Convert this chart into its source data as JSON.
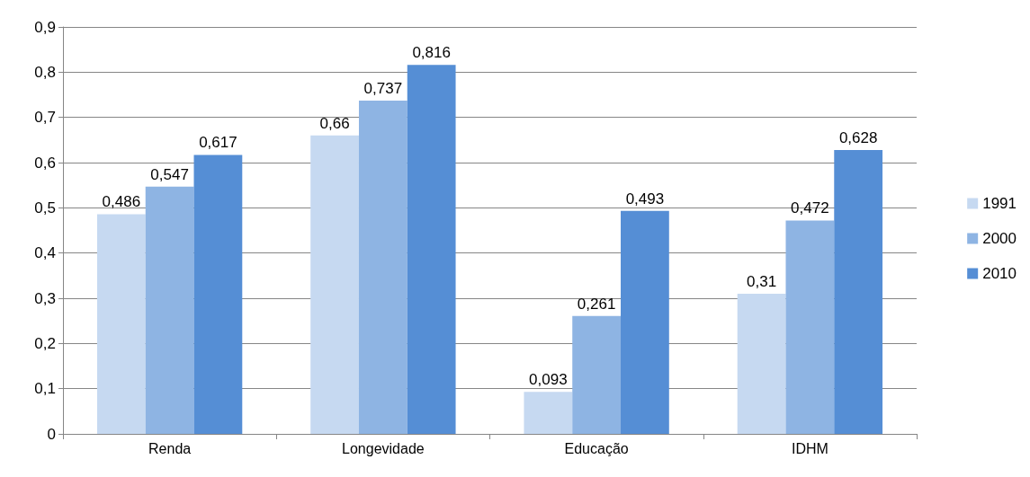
{
  "chart_data": {
    "type": "bar",
    "categories": [
      "Renda",
      "Longevidade",
      "Educação",
      "IDHM"
    ],
    "series": [
      {
        "name": "1991",
        "color": "#c6d9f1",
        "values": [
          0.486,
          0.66,
          0.093,
          0.31
        ],
        "value_labels": [
          "0,486",
          "0,66",
          "0,093",
          "0,31"
        ]
      },
      {
        "name": "2000",
        "color": "#8eb4e3",
        "values": [
          0.547,
          0.737,
          0.261,
          0.472
        ],
        "value_labels": [
          "0,547",
          "0,737",
          "0,261",
          "0,472"
        ]
      },
      {
        "name": "2010",
        "color": "#558ed5",
        "values": [
          0.617,
          0.816,
          0.493,
          0.628
        ],
        "value_labels": [
          "0,617",
          "0,816",
          "0,493",
          "0,628"
        ]
      }
    ],
    "ylim": [
      0,
      0.9
    ],
    "yticks": [
      {
        "value": 0,
        "label": "0"
      },
      {
        "value": 0.1,
        "label": "0,1"
      },
      {
        "value": 0.2,
        "label": "0,2"
      },
      {
        "value": 0.3,
        "label": "0,3"
      },
      {
        "value": 0.4,
        "label": "0,4"
      },
      {
        "value": 0.5,
        "label": "0,5"
      },
      {
        "value": 0.6,
        "label": "0,6"
      },
      {
        "value": 0.7,
        "label": "0,7"
      },
      {
        "value": 0.8,
        "label": "0,8"
      },
      {
        "value": 0.9,
        "label": "0,9"
      }
    ],
    "grid": "y",
    "legend": "right"
  }
}
